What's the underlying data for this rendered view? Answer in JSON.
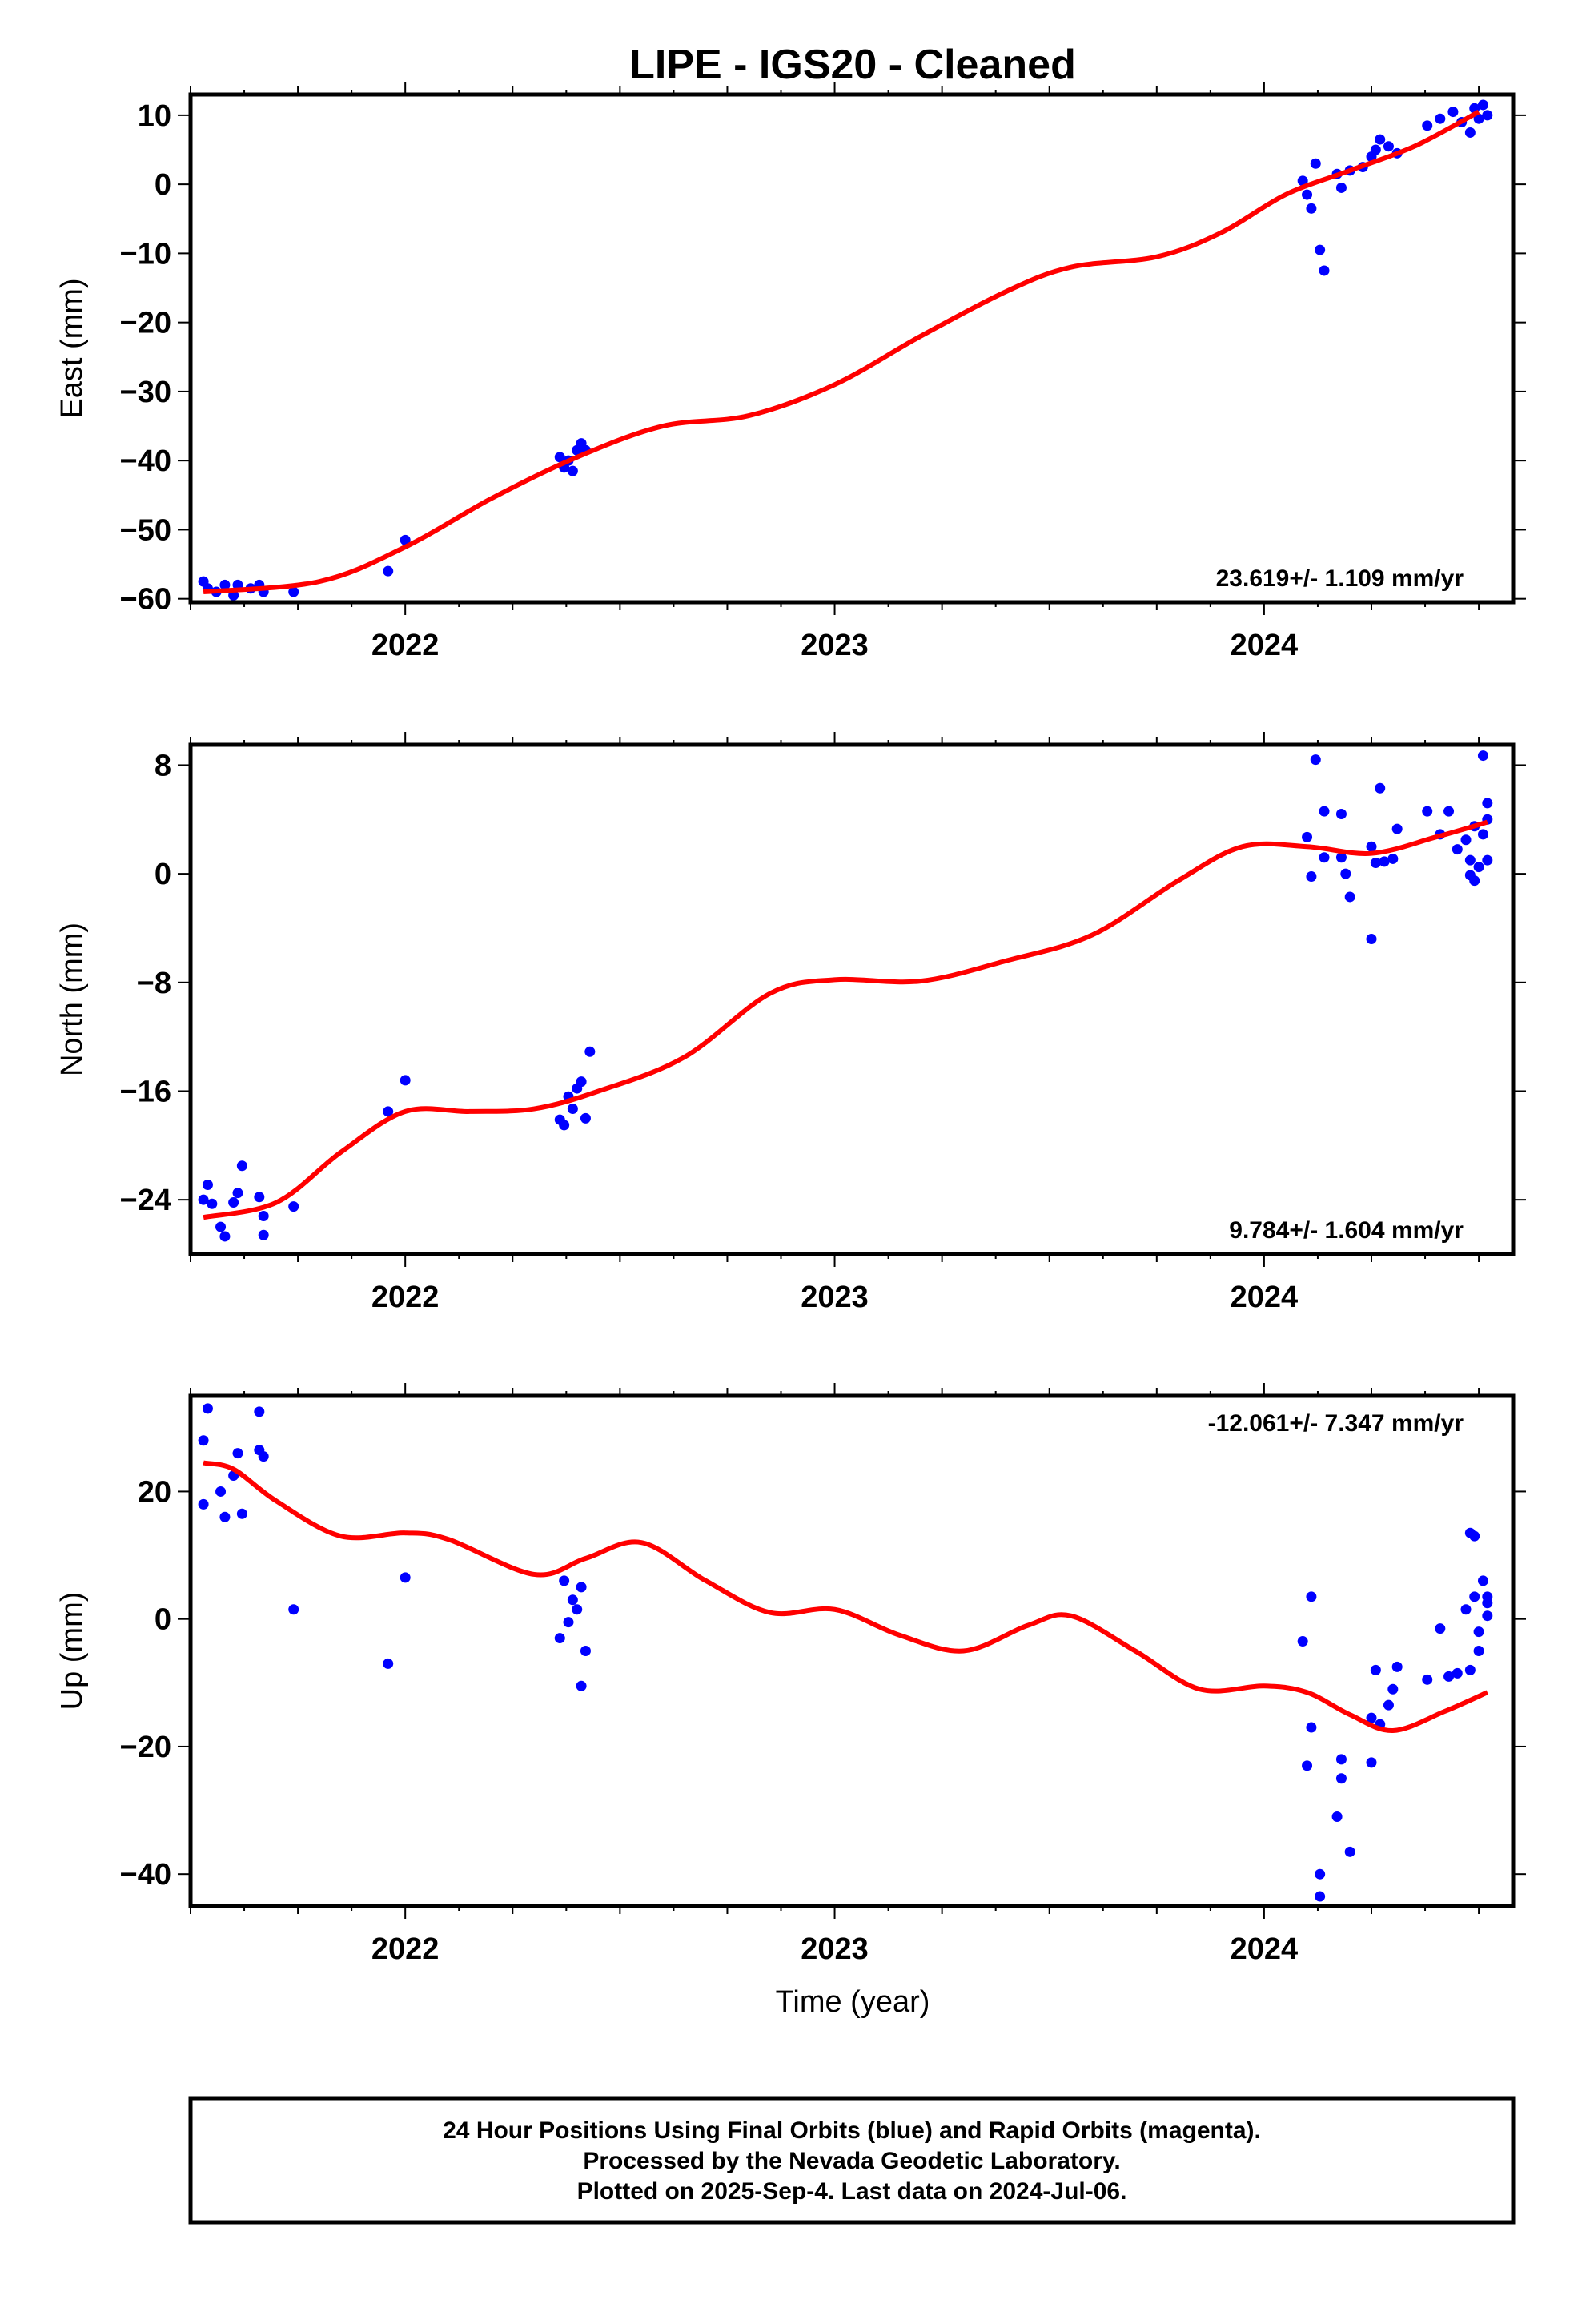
{
  "chart_data": {
    "type": "scatter",
    "title": "LIPE  - IGS20 - Cleaned",
    "xlabel": "Time (year)",
    "x_ticks": [
      "2022",
      "2023",
      "2024"
    ],
    "xlim": [
      2021.5,
      2024.58
    ],
    "panels": [
      {
        "name": "east",
        "ylabel": "East (mm)",
        "ylim": [
          -60.5,
          13
        ],
        "yticks": [
          10,
          0,
          -10,
          -20,
          -30,
          -40,
          -50,
          -60
        ],
        "ytick_labels": [
          "10",
          "0",
          "−10",
          "−20",
          "−30",
          "−40",
          "−50",
          "−60"
        ],
        "rate_label": "23.619+/- 1.109 mm/yr",
        "rate_position": "bottom-right",
        "fit": [
          [
            2021.53,
            -59.0
          ],
          [
            2021.8,
            -57.5
          ],
          [
            2022.0,
            -52.5
          ],
          [
            2022.2,
            -45.5
          ],
          [
            2022.4,
            -39.5
          ],
          [
            2022.6,
            -35.0
          ],
          [
            2022.8,
            -33.5
          ],
          [
            2023.0,
            -29.0
          ],
          [
            2023.2,
            -22.0
          ],
          [
            2023.4,
            -15.5
          ],
          [
            2023.55,
            -12.0
          ],
          [
            2023.75,
            -10.5
          ],
          [
            2023.9,
            -7.0
          ],
          [
            2024.05,
            -1.5
          ],
          [
            2024.2,
            2.0
          ],
          [
            2024.35,
            5.5
          ],
          [
            2024.5,
            10.5
          ]
        ],
        "points": [
          [
            2021.53,
            -57.5
          ],
          [
            2021.54,
            -58.5
          ],
          [
            2021.56,
            -59.0
          ],
          [
            2021.58,
            -58.0
          ],
          [
            2021.6,
            -59.5
          ],
          [
            2021.61,
            -58.0
          ],
          [
            2021.64,
            -58.5
          ],
          [
            2021.66,
            -58.0
          ],
          [
            2021.67,
            -59.0
          ],
          [
            2021.74,
            -59.0
          ],
          [
            2021.96,
            -56.0
          ],
          [
            2022.0,
            -51.5
          ],
          [
            2022.36,
            -39.5
          ],
          [
            2022.37,
            -41.0
          ],
          [
            2022.38,
            -40.0
          ],
          [
            2022.39,
            -41.5
          ],
          [
            2022.4,
            -38.5
          ],
          [
            2022.41,
            -37.5
          ],
          [
            2022.42,
            -38.5
          ],
          [
            2024.09,
            0.5
          ],
          [
            2024.1,
            -1.5
          ],
          [
            2024.11,
            -3.5
          ],
          [
            2024.12,
            3.0
          ],
          [
            2024.13,
            -9.5
          ],
          [
            2024.14,
            -12.5
          ],
          [
            2024.17,
            1.5
          ],
          [
            2024.18,
            -0.5
          ],
          [
            2024.2,
            2.0
          ],
          [
            2024.23,
            2.5
          ],
          [
            2024.25,
            4.0
          ],
          [
            2024.26,
            5.0
          ],
          [
            2024.27,
            6.5
          ],
          [
            2024.29,
            5.5
          ],
          [
            2024.31,
            4.5
          ],
          [
            2024.38,
            8.5
          ],
          [
            2024.41,
            9.5
          ],
          [
            2024.44,
            10.5
          ],
          [
            2024.46,
            9.0
          ],
          [
            2024.48,
            7.5
          ],
          [
            2024.49,
            11.0
          ],
          [
            2024.5,
            9.5
          ],
          [
            2024.51,
            11.5
          ],
          [
            2024.52,
            10.0
          ]
        ]
      },
      {
        "name": "north",
        "ylabel": "North (mm)",
        "ylim": [
          -28,
          9.5
        ],
        "yticks": [
          8,
          0,
          -8,
          -16,
          -24
        ],
        "ytick_labels": [
          "8",
          "0",
          "−8",
          "−16",
          "−24"
        ],
        "rate_label": "9.784+/- 1.604 mm/yr",
        "rate_position": "bottom-right",
        "fit": [
          [
            2021.53,
            -25.3
          ],
          [
            2021.7,
            -24.2
          ],
          [
            2021.85,
            -20.5
          ],
          [
            2022.0,
            -17.5
          ],
          [
            2022.15,
            -17.5
          ],
          [
            2022.3,
            -17.3
          ],
          [
            2022.45,
            -16.0
          ],
          [
            2022.65,
            -13.5
          ],
          [
            2022.85,
            -8.8
          ],
          [
            2023.0,
            -7.8
          ],
          [
            2023.2,
            -7.9
          ],
          [
            2023.4,
            -6.4
          ],
          [
            2023.6,
            -4.5
          ],
          [
            2023.8,
            -0.5
          ],
          [
            2023.95,
            2.0
          ],
          [
            2024.1,
            2.0
          ],
          [
            2024.25,
            1.5
          ],
          [
            2024.4,
            2.7
          ],
          [
            2024.52,
            3.8
          ]
        ],
        "points": [
          [
            2021.53,
            -24.0
          ],
          [
            2021.54,
            -22.9
          ],
          [
            2021.55,
            -24.3
          ],
          [
            2021.57,
            -26.0
          ],
          [
            2021.58,
            -26.7
          ],
          [
            2021.6,
            -24.2
          ],
          [
            2021.61,
            -23.5
          ],
          [
            2021.62,
            -21.5
          ],
          [
            2021.66,
            -23.8
          ],
          [
            2021.67,
            -25.2
          ],
          [
            2021.67,
            -26.6
          ],
          [
            2021.74,
            -24.5
          ],
          [
            2021.96,
            -17.5
          ],
          [
            2022.0,
            -15.2
          ],
          [
            2022.36,
            -18.1
          ],
          [
            2022.37,
            -18.5
          ],
          [
            2022.38,
            -16.4
          ],
          [
            2022.39,
            -17.3
          ],
          [
            2022.4,
            -15.8
          ],
          [
            2022.41,
            -15.3
          ],
          [
            2022.42,
            -18.0
          ],
          [
            2022.43,
            -13.1
          ],
          [
            2024.1,
            2.7
          ],
          [
            2024.11,
            -0.2
          ],
          [
            2024.12,
            8.4
          ],
          [
            2024.14,
            4.6
          ],
          [
            2024.14,
            1.2
          ],
          [
            2024.18,
            1.2
          ],
          [
            2024.18,
            4.4
          ],
          [
            2024.19,
            0.0
          ],
          [
            2024.2,
            -1.7
          ],
          [
            2024.25,
            -4.8
          ],
          [
            2024.25,
            2.0
          ],
          [
            2024.26,
            0.8
          ],
          [
            2024.27,
            6.3
          ],
          [
            2024.28,
            0.9
          ],
          [
            2024.3,
            1.1
          ],
          [
            2024.31,
            3.3
          ],
          [
            2024.38,
            4.6
          ],
          [
            2024.41,
            2.9
          ],
          [
            2024.43,
            4.6
          ],
          [
            2024.45,
            1.8
          ],
          [
            2024.47,
            2.5
          ],
          [
            2024.48,
            1.0
          ],
          [
            2024.48,
            -0.1
          ],
          [
            2024.49,
            -0.5
          ],
          [
            2024.49,
            3.5
          ],
          [
            2024.5,
            0.5
          ],
          [
            2024.51,
            8.7
          ],
          [
            2024.51,
            2.9
          ],
          [
            2024.52,
            5.2
          ],
          [
            2024.52,
            4.0
          ],
          [
            2024.52,
            1.0
          ]
        ]
      },
      {
        "name": "up",
        "ylabel": "Up (mm)",
        "ylim": [
          -45,
          35
        ],
        "yticks": [
          20,
          0,
          -20,
          -40
        ],
        "ytick_labels": [
          "20",
          "0",
          "−20",
          "−40"
        ],
        "rate_label": "-12.061+/- 7.347 mm/yr",
        "rate_position": "top-right",
        "fit": [
          [
            2021.53,
            24.5
          ],
          [
            2021.6,
            23.5
          ],
          [
            2021.7,
            18.5
          ],
          [
            2021.85,
            13.0
          ],
          [
            2022.0,
            13.5
          ],
          [
            2022.1,
            12.5
          ],
          [
            2022.3,
            7.0
          ],
          [
            2022.42,
            9.5
          ],
          [
            2022.55,
            12.0
          ],
          [
            2022.7,
            6.0
          ],
          [
            2022.85,
            1.0
          ],
          [
            2023.0,
            1.5
          ],
          [
            2023.15,
            -2.5
          ],
          [
            2023.3,
            -5.0
          ],
          [
            2023.45,
            -1.0
          ],
          [
            2023.55,
            0.5
          ],
          [
            2023.7,
            -5.0
          ],
          [
            2023.85,
            -11.0
          ],
          [
            2024.0,
            -10.5
          ],
          [
            2024.1,
            -11.5
          ],
          [
            2024.2,
            -15.0
          ],
          [
            2024.3,
            -17.5
          ],
          [
            2024.42,
            -14.5
          ],
          [
            2024.52,
            -11.5
          ]
        ],
        "points": [
          [
            2021.53,
            28.0
          ],
          [
            2021.54,
            33.0
          ],
          [
            2021.53,
            18.0
          ],
          [
            2021.57,
            20.0
          ],
          [
            2021.58,
            16.0
          ],
          [
            2021.6,
            22.5
          ],
          [
            2021.61,
            26.0
          ],
          [
            2021.62,
            16.5
          ],
          [
            2021.66,
            32.5
          ],
          [
            2021.66,
            26.5
          ],
          [
            2021.67,
            25.5
          ],
          [
            2021.74,
            1.5
          ],
          [
            2021.96,
            -7.0
          ],
          [
            2022.0,
            6.5
          ],
          [
            2022.36,
            -3.0
          ],
          [
            2022.37,
            6.0
          ],
          [
            2022.38,
            -0.5
          ],
          [
            2022.39,
            3.0
          ],
          [
            2022.4,
            1.5
          ],
          [
            2022.41,
            -10.5
          ],
          [
            2022.41,
            5.0
          ],
          [
            2022.42,
            -5.0
          ],
          [
            2024.09,
            -3.5
          ],
          [
            2024.1,
            -23.0
          ],
          [
            2024.11,
            3.5
          ],
          [
            2024.11,
            -17.0
          ],
          [
            2024.13,
            -40.0
          ],
          [
            2024.13,
            -43.5
          ],
          [
            2024.17,
            -31.0
          ],
          [
            2024.18,
            -22.0
          ],
          [
            2024.18,
            -25.0
          ],
          [
            2024.2,
            -36.5
          ],
          [
            2024.25,
            -15.5
          ],
          [
            2024.25,
            -22.5
          ],
          [
            2024.26,
            -8.0
          ],
          [
            2024.27,
            -16.5
          ],
          [
            2024.29,
            -13.5
          ],
          [
            2024.3,
            -11.0
          ],
          [
            2024.31,
            -7.5
          ],
          [
            2024.38,
            -9.5
          ],
          [
            2024.41,
            -1.5
          ],
          [
            2024.43,
            -9.0
          ],
          [
            2024.45,
            -8.5
          ],
          [
            2024.47,
            1.5
          ],
          [
            2024.48,
            -8.0
          ],
          [
            2024.48,
            13.5
          ],
          [
            2024.49,
            3.5
          ],
          [
            2024.49,
            13.0
          ],
          [
            2024.5,
            -2.0
          ],
          [
            2024.5,
            -5.0
          ],
          [
            2024.51,
            6.0
          ],
          [
            2024.52,
            2.5
          ],
          [
            2024.52,
            0.5
          ],
          [
            2024.52,
            3.5
          ]
        ]
      }
    ],
    "colors": {
      "fit": "#ff0000",
      "points": "#0000ff",
      "axes": "#000000"
    }
  },
  "footer": {
    "line1": "24 Hour Positions Using Final Orbits (blue) and Rapid Orbits (magenta).",
    "line2": "Processed by the Nevada Geodetic Laboratory.",
    "line3": "Plotted on 2025-Sep-4. Last data on 2024-Jul-06."
  }
}
